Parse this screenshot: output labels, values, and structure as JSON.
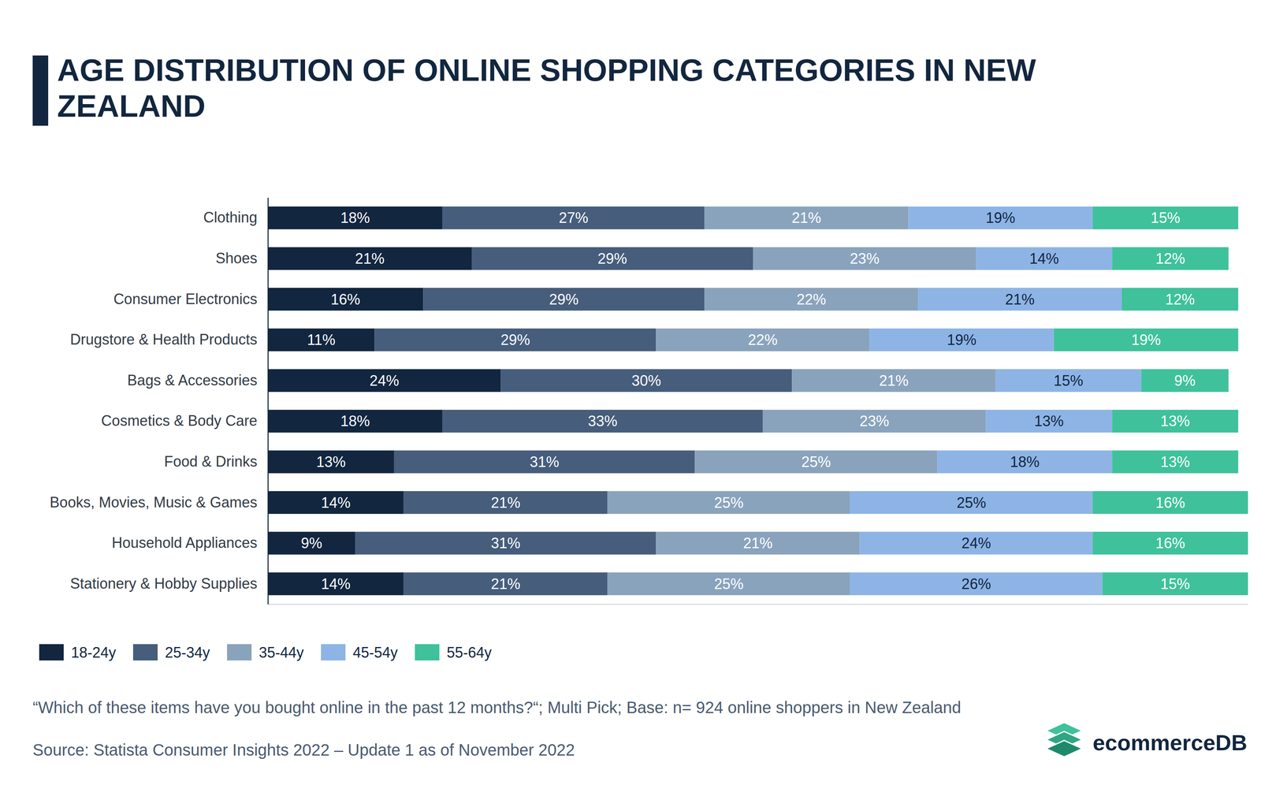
{
  "chart_data": {
    "type": "bar",
    "orientation": "horizontal",
    "stacked": true,
    "data_labels": true,
    "tick_labels": "y",
    "legend": "bottom-left",
    "title": "AGE DISTRIBUTION OF ONLINE SHOPPING CATEGORIES IN NEW ZEALAND",
    "annotations": [
      "“Which of these items have you bought online in the past 12 months?“; Multi Pick; Base: n= 924 online shoppers in New Zealand",
      "Source: Statista Consumer Insights 2022 – Update 1 as of November 2022",
      "ecommerceDB"
    ],
    "categories": [
      "Clothing",
      "Shoes",
      "Consumer Electronics",
      "Drugstore & Health Products",
      "Bags & Accessories",
      "Cosmetics & Body Care",
      "Food & Drinks",
      "Books, Movies, Music & Games",
      "Household Appliances",
      "Stationery & Hobby Supplies"
    ],
    "xlim": [
      0,
      101
    ],
    "series": [
      {
        "name": "18-24y",
        "color": "#12263f",
        "values": [
          18,
          21,
          16,
          11,
          24,
          18,
          13,
          14,
          9,
          14
        ],
        "value_labels": [
          "18%",
          "21%",
          "16%",
          "11%",
          "24%",
          "18%",
          "13%",
          "14%",
          "9%",
          "14%"
        ]
      },
      {
        "name": "25-34y",
        "color": "#465d7c",
        "values": [
          27,
          29,
          29,
          29,
          30,
          33,
          31,
          21,
          31,
          21
        ],
        "value_labels": [
          "27%",
          "29%",
          "29%",
          "29%",
          "30%",
          "33%",
          "31%",
          "21%",
          "31%",
          "21%"
        ]
      },
      {
        "name": "35-44y",
        "color": "#8aa3bd",
        "values": [
          21,
          23,
          22,
          22,
          21,
          23,
          25,
          25,
          21,
          25
        ],
        "value_labels": [
          "21%",
          "23%",
          "22%",
          "22%",
          "21%",
          "23%",
          "25%",
          "25%",
          "21%",
          "25%"
        ]
      },
      {
        "name": "45-54y",
        "color": "#8db4e5",
        "values": [
          19,
          14,
          21,
          19,
          15,
          13,
          18,
          25,
          24,
          26
        ],
        "value_labels": [
          "19%",
          "14%",
          "21%",
          "19%",
          "15%",
          "13%",
          "18%",
          "25%",
          "24%",
          "26%"
        ]
      },
      {
        "name": "55-64y",
        "color": "#3fc19b",
        "values": [
          15,
          12,
          12,
          19,
          9,
          13,
          13,
          16,
          16,
          15
        ],
        "value_labels": [
          "15%",
          "12%",
          "12%",
          "19%",
          "9%",
          "13%",
          "13%",
          "16%",
          "16%",
          "15%"
        ]
      }
    ]
  }
}
